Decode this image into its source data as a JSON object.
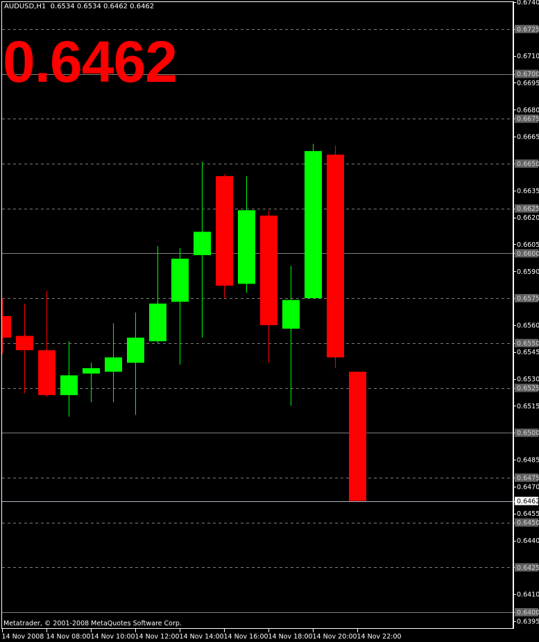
{
  "header": {
    "symbol": "AUDUSD,H1",
    "ohlc": "0.6534 0.6534 0.6462 0.6462"
  },
  "big_price": "0.6462",
  "copyright": "Metatrader, © 2001-2008 MetaQuotes Software Corp.",
  "colors": {
    "background": "#000000",
    "bull": "#00ff00",
    "bear": "#ff0000",
    "grid": "#808080",
    "bid_line": "#b0b8c8",
    "big_price": "#ff0000"
  },
  "chart_data": {
    "type": "candlestick",
    "ylim": [
      0.6395,
      0.674
    ],
    "y_ticks": [
      "0.6740",
      "0.6725",
      "0.6710",
      "0.6700",
      "0.6695",
      "0.6680",
      "0.6675",
      "0.6665",
      "0.6650",
      "0.6635",
      "0.6625",
      "0.6620",
      "0.6605",
      "0.6600",
      "0.6590",
      "0.6575",
      "0.6560",
      "0.6550",
      "0.6545",
      "0.6530",
      "0.6525",
      "0.6515",
      "0.6500",
      "0.6485",
      "0.6475",
      "0.6470",
      "0.6462",
      "0.6455",
      "0.6450",
      "0.6440",
      "0.6425",
      "0.6410",
      "0.6400",
      "0.6395"
    ],
    "highlighted_levels": [
      "0.6725",
      "0.6700",
      "0.6675",
      "0.6650",
      "0.6625",
      "0.6600",
      "0.6575",
      "0.6550",
      "0.6525",
      "0.6500",
      "0.6475",
      "0.6450",
      "0.6425",
      "0.6400"
    ],
    "solid_levels": [
      0.67,
      0.66,
      0.65,
      0.64
    ],
    "dashed_levels": [
      0.6725,
      0.6675,
      0.665,
      0.6625,
      0.6575,
      0.655,
      0.6525,
      0.6475,
      0.645,
      0.6425
    ],
    "bid": {
      "value": 0.6462,
      "label": "0.6462"
    },
    "x_labels": [
      "14 Nov 2008",
      "14 Nov 08:00",
      "14 Nov 10:00",
      "14 Nov 12:00",
      "14 Nov 14:00",
      "14 Nov 16:00",
      "14 Nov 18:00",
      "14 Nov 20:00",
      "14 Nov 22:00"
    ],
    "candles": [
      {
        "time": "06:00",
        "open": 0.6565,
        "high": 0.6575,
        "low": 0.6544,
        "close": 0.6553
      },
      {
        "time": "07:00",
        "open": 0.6554,
        "high": 0.6572,
        "low": 0.6522,
        "close": 0.6546
      },
      {
        "time": "08:00",
        "open": 0.6546,
        "high": 0.6579,
        "low": 0.652,
        "close": 0.6521
      },
      {
        "time": "09:00",
        "open": 0.6521,
        "high": 0.6551,
        "low": 0.6509,
        "close": 0.6532
      },
      {
        "time": "10:00",
        "open": 0.6533,
        "high": 0.6539,
        "low": 0.6517,
        "close": 0.6536
      },
      {
        "time": "11:00",
        "open": 0.6534,
        "high": 0.6561,
        "low": 0.6517,
        "close": 0.6542
      },
      {
        "time": "12:00",
        "open": 0.6539,
        "high": 0.6567,
        "low": 0.651,
        "close": 0.6553
      },
      {
        "time": "13:00",
        "open": 0.6551,
        "high": 0.6604,
        "low": 0.655,
        "close": 0.6572
      },
      {
        "time": "14:00",
        "open": 0.6573,
        "high": 0.6603,
        "low": 0.6538,
        "close": 0.6597
      },
      {
        "time": "15:00",
        "open": 0.6599,
        "high": 0.6651,
        "low": 0.6553,
        "close": 0.6612
      },
      {
        "time": "16:00",
        "open": 0.6643,
        "high": 0.6644,
        "low": 0.6575,
        "close": 0.6582
      },
      {
        "time": "17:00",
        "open": 0.6583,
        "high": 0.6643,
        "low": 0.6578,
        "close": 0.6624
      },
      {
        "time": "18:00",
        "open": 0.6621,
        "high": 0.6624,
        "low": 0.6539,
        "close": 0.656
      },
      {
        "time": "19:00",
        "open": 0.6558,
        "high": 0.6593,
        "low": 0.6515,
        "close": 0.6574
      },
      {
        "time": "20:00",
        "open": 0.6575,
        "high": 0.6661,
        "low": 0.6575,
        "close": 0.6657
      },
      {
        "time": "21:00",
        "open": 0.6655,
        "high": 0.666,
        "low": 0.6536,
        "close": 0.6542
      },
      {
        "time": "22:00",
        "open": 0.6534,
        "high": 0.6534,
        "low": 0.6462,
        "close": 0.6462
      }
    ]
  }
}
